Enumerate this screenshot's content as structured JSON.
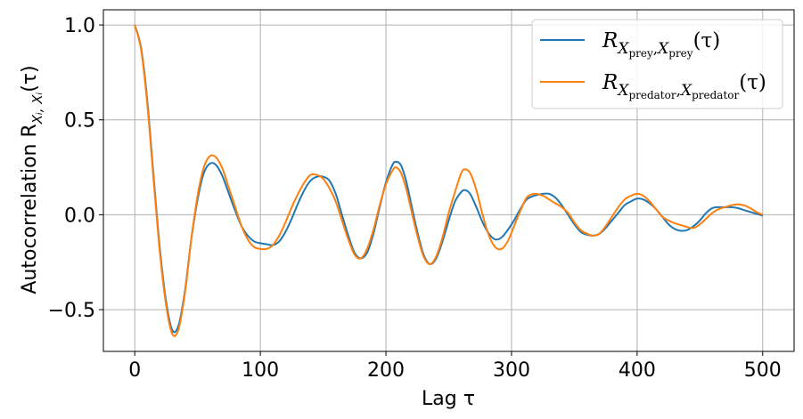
{
  "chart_data": {
    "type": "line",
    "xlabel": "Lag τ",
    "ylabel": "Autocorrelation R",
    "ylabel_sub": "Xᵢ, Xᵢ",
    "ylabel_tail": "(τ)",
    "xlim": [
      -25,
      525
    ],
    "ylim": [
      -0.72,
      1.08
    ],
    "xticks": [
      0,
      100,
      200,
      300,
      400,
      500
    ],
    "xtick_labels": [
      "0",
      "100",
      "200",
      "300",
      "400",
      "500"
    ],
    "yticks": [
      -0.5,
      0.0,
      0.5,
      1.0
    ],
    "ytick_labels": [
      "−0.5",
      "0.0",
      "0.5",
      "1.0"
    ],
    "grid": true,
    "legend_position": "top-right",
    "series": [
      {
        "name": "R_{X_prey, X_prey}(τ)",
        "legend_main": "R",
        "legend_sub": "X",
        "legend_subsub": "prey",
        "legend_sub2": "X",
        "legend_subsub2": "prey",
        "legend_tail": "(τ)",
        "color": "#1f77b4",
        "points": [
          [
            0,
            1.0
          ],
          [
            5,
            0.88
          ],
          [
            10,
            0.6
          ],
          [
            15,
            0.2
          ],
          [
            20,
            -0.18
          ],
          [
            25,
            -0.46
          ],
          [
            30,
            -0.61
          ],
          [
            35,
            -0.58
          ],
          [
            40,
            -0.4
          ],
          [
            45,
            -0.13
          ],
          [
            50,
            0.08
          ],
          [
            55,
            0.22
          ],
          [
            60,
            0.27
          ],
          [
            65,
            0.26
          ],
          [
            70,
            0.2
          ],
          [
            75,
            0.11
          ],
          [
            80,
            0.02
          ],
          [
            85,
            -0.06
          ],
          [
            90,
            -0.11
          ],
          [
            95,
            -0.14
          ],
          [
            100,
            -0.15
          ],
          [
            105,
            -0.155
          ],
          [
            110,
            -0.16
          ],
          [
            115,
            -0.14
          ],
          [
            120,
            -0.09
          ],
          [
            125,
            -0.02
          ],
          [
            130,
            0.06
          ],
          [
            135,
            0.13
          ],
          [
            140,
            0.18
          ],
          [
            145,
            0.2
          ],
          [
            150,
            0.2
          ],
          [
            155,
            0.18
          ],
          [
            160,
            0.11
          ],
          [
            165,
            0.0
          ],
          [
            170,
            -0.11
          ],
          [
            175,
            -0.2
          ],
          [
            180,
            -0.23
          ],
          [
            185,
            -0.2
          ],
          [
            190,
            -0.1
          ],
          [
            195,
            0.04
          ],
          [
            200,
            0.17
          ],
          [
            205,
            0.26
          ],
          [
            208,
            0.28
          ],
          [
            212,
            0.26
          ],
          [
            216,
            0.18
          ],
          [
            220,
            0.06
          ],
          [
            225,
            -0.09
          ],
          [
            230,
            -0.21
          ],
          [
            235,
            -0.26
          ],
          [
            240,
            -0.23
          ],
          [
            245,
            -0.14
          ],
          [
            250,
            -0.03
          ],
          [
            255,
            0.07
          ],
          [
            260,
            0.12
          ],
          [
            263,
            0.13
          ],
          [
            267,
            0.11
          ],
          [
            272,
            0.04
          ],
          [
            277,
            -0.04
          ],
          [
            282,
            -0.1
          ],
          [
            287,
            -0.13
          ],
          [
            292,
            -0.12
          ],
          [
            297,
            -0.08
          ],
          [
            302,
            -0.03
          ],
          [
            307,
            0.03
          ],
          [
            312,
            0.08
          ],
          [
            318,
            0.1
          ],
          [
            325,
            0.11
          ],
          [
            330,
            0.11
          ],
          [
            335,
            0.09
          ],
          [
            340,
            0.05
          ],
          [
            345,
            0.0
          ],
          [
            350,
            -0.05
          ],
          [
            355,
            -0.09
          ],
          [
            360,
            -0.105
          ],
          [
            365,
            -0.11
          ],
          [
            370,
            -0.1
          ],
          [
            375,
            -0.07
          ],
          [
            380,
            -0.03
          ],
          [
            385,
            0.01
          ],
          [
            390,
            0.05
          ],
          [
            395,
            0.07
          ],
          [
            400,
            0.085
          ],
          [
            405,
            0.08
          ],
          [
            410,
            0.06
          ],
          [
            415,
            0.03
          ],
          [
            420,
            -0.01
          ],
          [
            425,
            -0.05
          ],
          [
            430,
            -0.075
          ],
          [
            435,
            -0.085
          ],
          [
            440,
            -0.08
          ],
          [
            445,
            -0.06
          ],
          [
            450,
            -0.03
          ],
          [
            455,
            0.01
          ],
          [
            460,
            0.035
          ],
          [
            465,
            0.04
          ],
          [
            470,
            0.04
          ],
          [
            475,
            0.04
          ],
          [
            480,
            0.035
          ],
          [
            485,
            0.025
          ],
          [
            490,
            0.015
          ],
          [
            495,
            0.005
          ],
          [
            500,
            -0.005
          ]
        ]
      },
      {
        "name": "R_{X_predator, X_predator}(τ)",
        "legend_main": "R",
        "legend_sub": "X",
        "legend_subsub": "predator",
        "legend_sub2": "X",
        "legend_subsub2": "predator",
        "legend_tail": "(τ)",
        "color": "#ff7f0e",
        "points": [
          [
            0,
            1.0
          ],
          [
            5,
            0.87
          ],
          [
            10,
            0.58
          ],
          [
            15,
            0.18
          ],
          [
            20,
            -0.2
          ],
          [
            25,
            -0.48
          ],
          [
            30,
            -0.63
          ],
          [
            35,
            -0.6
          ],
          [
            40,
            -0.41
          ],
          [
            45,
            -0.13
          ],
          [
            50,
            0.1
          ],
          [
            55,
            0.25
          ],
          [
            60,
            0.31
          ],
          [
            65,
            0.3
          ],
          [
            70,
            0.24
          ],
          [
            75,
            0.14
          ],
          [
            80,
            0.04
          ],
          [
            85,
            -0.06
          ],
          [
            90,
            -0.13
          ],
          [
            95,
            -0.17
          ],
          [
            100,
            -0.18
          ],
          [
            105,
            -0.18
          ],
          [
            110,
            -0.16
          ],
          [
            115,
            -0.11
          ],
          [
            120,
            -0.04
          ],
          [
            125,
            0.04
          ],
          [
            130,
            0.11
          ],
          [
            135,
            0.17
          ],
          [
            140,
            0.21
          ],
          [
            145,
            0.21
          ],
          [
            150,
            0.19
          ],
          [
            155,
            0.14
          ],
          [
            160,
            0.07
          ],
          [
            165,
            -0.03
          ],
          [
            170,
            -0.13
          ],
          [
            175,
            -0.21
          ],
          [
            180,
            -0.23
          ],
          [
            185,
            -0.18
          ],
          [
            190,
            -0.08
          ],
          [
            195,
            0.05
          ],
          [
            200,
            0.16
          ],
          [
            205,
            0.23
          ],
          [
            208,
            0.25
          ],
          [
            212,
            0.22
          ],
          [
            216,
            0.14
          ],
          [
            220,
            0.03
          ],
          [
            225,
            -0.11
          ],
          [
            230,
            -0.22
          ],
          [
            235,
            -0.26
          ],
          [
            240,
            -0.22
          ],
          [
            245,
            -0.12
          ],
          [
            250,
            0.01
          ],
          [
            255,
            0.12
          ],
          [
            260,
            0.22
          ],
          [
            263,
            0.24
          ],
          [
            267,
            0.22
          ],
          [
            272,
            0.13
          ],
          [
            277,
            0.0
          ],
          [
            282,
            -0.11
          ],
          [
            287,
            -0.17
          ],
          [
            292,
            -0.18
          ],
          [
            297,
            -0.14
          ],
          [
            302,
            -0.06
          ],
          [
            307,
            0.02
          ],
          [
            312,
            0.09
          ],
          [
            318,
            0.11
          ],
          [
            325,
            0.1
          ],
          [
            330,
            0.08
          ],
          [
            335,
            0.06
          ],
          [
            340,
            0.04
          ],
          [
            345,
            0.01
          ],
          [
            350,
            -0.04
          ],
          [
            355,
            -0.08
          ],
          [
            360,
            -0.1
          ],
          [
            365,
            -0.11
          ],
          [
            370,
            -0.1
          ],
          [
            375,
            -0.06
          ],
          [
            380,
            -0.01
          ],
          [
            385,
            0.04
          ],
          [
            390,
            0.08
          ],
          [
            395,
            0.1
          ],
          [
            400,
            0.11
          ],
          [
            405,
            0.1
          ],
          [
            410,
            0.07
          ],
          [
            415,
            0.03
          ],
          [
            420,
            -0.01
          ],
          [
            425,
            -0.03
          ],
          [
            430,
            -0.045
          ],
          [
            435,
            -0.055
          ],
          [
            440,
            -0.065
          ],
          [
            445,
            -0.07
          ],
          [
            450,
            -0.05
          ],
          [
            455,
            -0.02
          ],
          [
            460,
            0.01
          ],
          [
            465,
            0.03
          ],
          [
            470,
            0.04
          ],
          [
            475,
            0.05
          ],
          [
            480,
            0.055
          ],
          [
            485,
            0.05
          ],
          [
            490,
            0.035
          ],
          [
            495,
            0.015
          ],
          [
            500,
            0.0
          ]
        ]
      }
    ]
  }
}
